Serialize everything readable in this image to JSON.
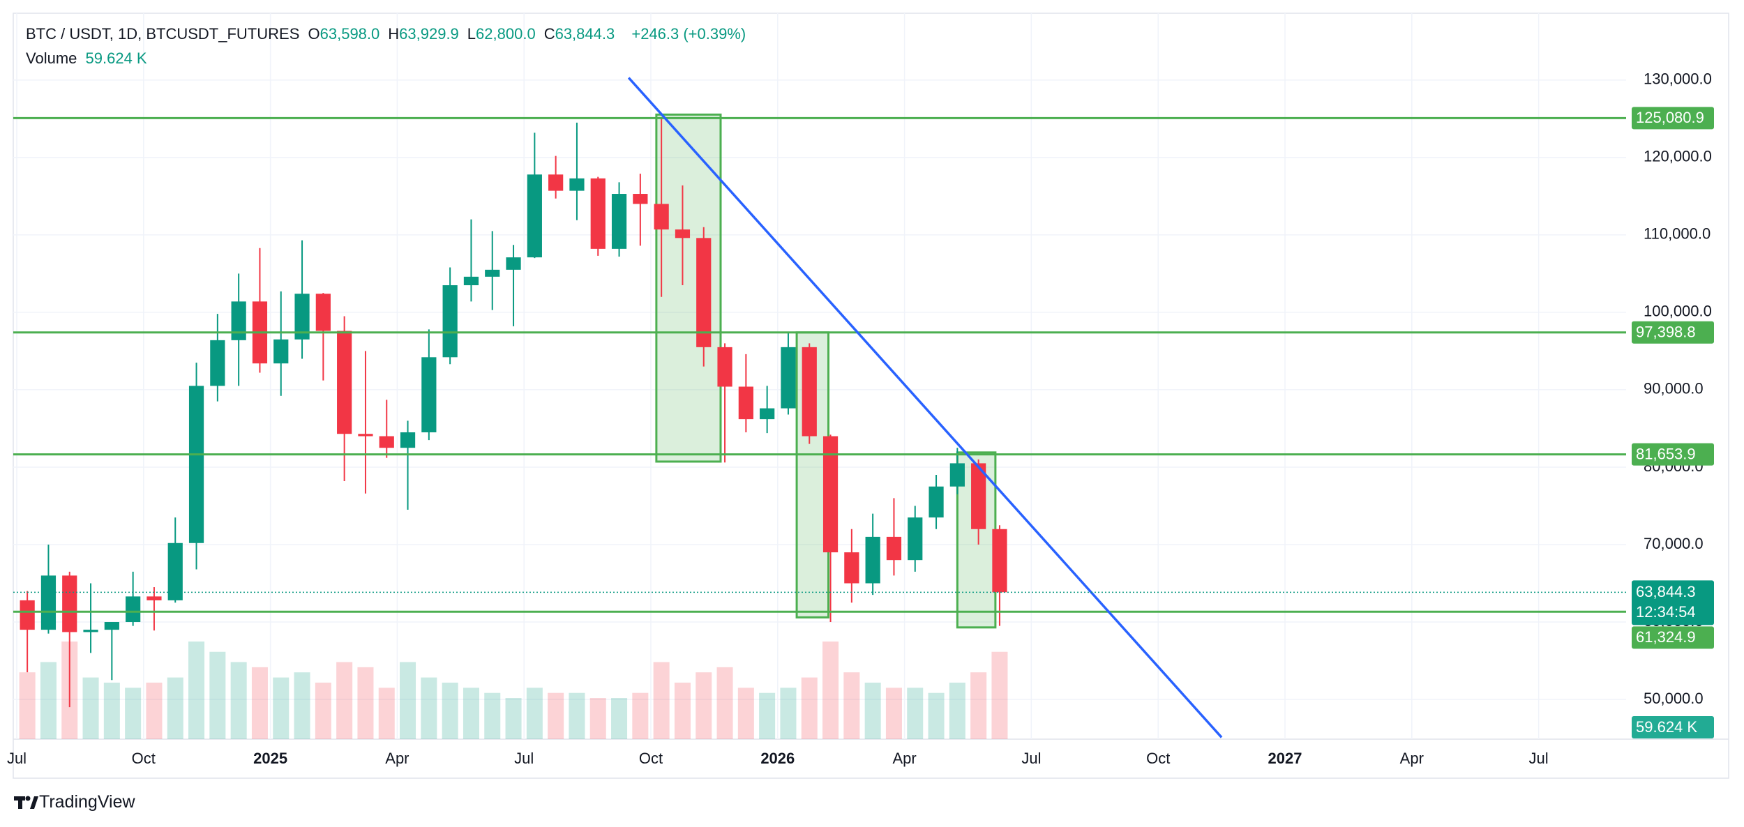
{
  "chart_data": {
    "type": "candlestick",
    "title": "BTC / USDT, 1D, BTCUSDT_FUTURES",
    "ohlc_header": [
      {
        "letter": "O",
        "value": {
          "value": 63598.0,
          "label": "63,598.0"
        }
      },
      {
        "letter": "H",
        "value": {
          "value": 63929.9,
          "label": "63,929.9"
        }
      },
      {
        "letter": "L",
        "value": {
          "value": 62800.0,
          "label": "62,800.0"
        }
      },
      {
        "letter": "C",
        "value": {
          "value": 63844.3,
          "label": "63,844.3"
        }
      }
    ],
    "change": "+246.3 (+0.39%)",
    "volume_title": "Volume",
    "volume_last": {
      "value": 59.624,
      "label": "59.624 K"
    },
    "categories": [
      "Jul",
      null,
      null,
      null,
      null,
      null,
      "Oct",
      null,
      null,
      null,
      null,
      null,
      "2025",
      null,
      null,
      null,
      null,
      null,
      "Apr",
      null,
      null,
      null,
      null,
      null,
      "Jul",
      null,
      null,
      null,
      null,
      null,
      "Oct",
      null,
      null,
      null,
      null,
      null,
      "2026",
      null,
      null,
      null,
      null,
      null,
      "Apr",
      null,
      null,
      null,
      null,
      null,
      "Jul",
      null,
      null,
      null,
      null,
      null,
      "Oct",
      null,
      null,
      null,
      null,
      null,
      "2027",
      null,
      null,
      null,
      null,
      null,
      "Apr",
      null,
      null,
      null,
      null,
      null,
      "Jul",
      null,
      null,
      null,
      null
    ],
    "open": [
      62800,
      59000,
      66000,
      58700,
      59000,
      60000,
      63300,
      62800,
      70200,
      90500,
      96400,
      101400,
      93400,
      96500,
      102400,
      97600,
      84300,
      84000,
      82500,
      84500,
      94200,
      103500,
      104600,
      105500,
      107100,
      117800,
      115700,
      117300,
      108200,
      115300,
      114000,
      110700,
      109600,
      95500,
      90400,
      86200,
      87600,
      95500,
      84000,
      69000,
      65000,
      71000,
      68000,
      73500,
      77500,
      80500,
      72000,
      null,
      null,
      null,
      null,
      null,
      null,
      null,
      null,
      null,
      null,
      null,
      null,
      null,
      null,
      null,
      null,
      null,
      null,
      null,
      null,
      null,
      null,
      null,
      null,
      null,
      null,
      null,
      null,
      null,
      null
    ],
    "high": [
      64000,
      70000,
      66500,
      65000,
      60000,
      66500,
      64500,
      73500,
      93500,
      99800,
      105000,
      108300,
      102700,
      109300,
      102500,
      99500,
      95000,
      88700,
      86000,
      97800,
      105800,
      112000,
      110500,
      108700,
      123200,
      120200,
      124500,
      117500,
      116800,
      117900,
      125100,
      116400,
      111000,
      96000,
      94600,
      90500,
      97400,
      96000,
      84200,
      72000,
      74000,
      76000,
      75000,
      79000,
      82500,
      81000,
      72500,
      null,
      null,
      null,
      null,
      null,
      null,
      null,
      null,
      null,
      null,
      null,
      null,
      null,
      null,
      null,
      null,
      null,
      null,
      null,
      null,
      null,
      null,
      null,
      null,
      null,
      null,
      null,
      null,
      null,
      null
    ],
    "low": [
      53500,
      58500,
      49000,
      56000,
      52500,
      59500,
      58900,
      62500,
      66800,
      88500,
      90500,
      92200,
      89200,
      94000,
      91200,
      78200,
      76600,
      81200,
      74500,
      83500,
      93300,
      101400,
      100300,
      98200,
      107000,
      114700,
      111900,
      107300,
      107200,
      108600,
      102000,
      103500,
      93000,
      80600,
      84500,
      84400,
      86800,
      83000,
      60000,
      62500,
      63500,
      66000,
      66500,
      72000,
      76500,
      70000,
      59500,
      null,
      null,
      null,
      null,
      null,
      null,
      null,
      null,
      null,
      null,
      null,
      null,
      null,
      null,
      null,
      null,
      null,
      null,
      null,
      null,
      null,
      null,
      null,
      null,
      null,
      null,
      null,
      null,
      null,
      null
    ],
    "close": [
      59000,
      66000,
      58700,
      59000,
      60000,
      63300,
      62800,
      70200,
      90500,
      96400,
      101400,
      93400,
      96500,
      102400,
      97600,
      84300,
      84000,
      82500,
      84500,
      94200,
      103500,
      104600,
      105500,
      107100,
      117800,
      115700,
      117300,
      108200,
      115300,
      114000,
      110700,
      109600,
      95500,
      90400,
      86200,
      87600,
      95500,
      84000,
      69000,
      65000,
      71000,
      68000,
      73500,
      77500,
      80500,
      72000,
      63844.3,
      null,
      null,
      null,
      null,
      null,
      null,
      null,
      null,
      null,
      null,
      null,
      null,
      null,
      null,
      null,
      null,
      null,
      null,
      null,
      null,
      null,
      null,
      null,
      null,
      null,
      null,
      null,
      null,
      null,
      null
    ],
    "volume": [
      1300,
      1500,
      1900,
      1200,
      1100,
      1000,
      1100,
      1200,
      1900,
      1700,
      1500,
      1400,
      1200,
      1300,
      1100,
      1500,
      1400,
      1000,
      1500,
      1200,
      1100,
      1000,
      900,
      800,
      1000,
      900,
      900,
      800,
      800,
      900,
      1500,
      1100,
      1300,
      1400,
      1000,
      900,
      1000,
      1200,
      1900,
      1300,
      1100,
      1000,
      1000,
      900,
      1100,
      1300,
      1700,
      null,
      null,
      null,
      null,
      null,
      null,
      null,
      null,
      null,
      null,
      null,
      null,
      null,
      null,
      null,
      null,
      null,
      null,
      null,
      null,
      null,
      null,
      null,
      null,
      null,
      null,
      null,
      null,
      null,
      null
    ],
    "up_color": "#089981",
    "down_color": "#f23645",
    "ylim": [
      44870,
      138630
    ],
    "yticks": [
      {
        "value": 50000,
        "label": "50,000.0"
      },
      {
        "value": 60000,
        "label": "60,000.0"
      },
      {
        "value": 70000,
        "label": "70,000.0"
      },
      {
        "value": 80000,
        "label": "80,000.0"
      },
      {
        "value": 90000,
        "label": "90,000.0"
      },
      {
        "value": 100000,
        "label": "100,000.0"
      },
      {
        "value": 110000,
        "label": "110,000.0"
      },
      {
        "value": 120000,
        "label": "120,000.0"
      },
      {
        "value": 130000,
        "label": "130,000.0"
      }
    ],
    "grid": true,
    "levels": [
      {
        "value": 125080.9,
        "label": "125,080.9"
      },
      {
        "value": 97398.8,
        "label": "97,398.8"
      },
      {
        "value": 81653.9,
        "label": "81,653.9"
      },
      {
        "value": 61324.9,
        "label": "61,324.9"
      }
    ],
    "level_color": "#4caf50",
    "boxes": [
      {
        "ylim": [
          80720,
          125540
        ]
      },
      {
        "ylim": [
          60600,
          97400
        ]
      },
      {
        "ylim": [
          59300,
          81900
        ]
      }
    ],
    "trendline": {
      "values": [
        130300,
        45100
      ],
      "color": "#2962ff"
    },
    "last_price": {
      "value": 63844.3,
      "label": "63,844.3"
    },
    "countdown": "12:34:54",
    "brand": "TradingView"
  }
}
